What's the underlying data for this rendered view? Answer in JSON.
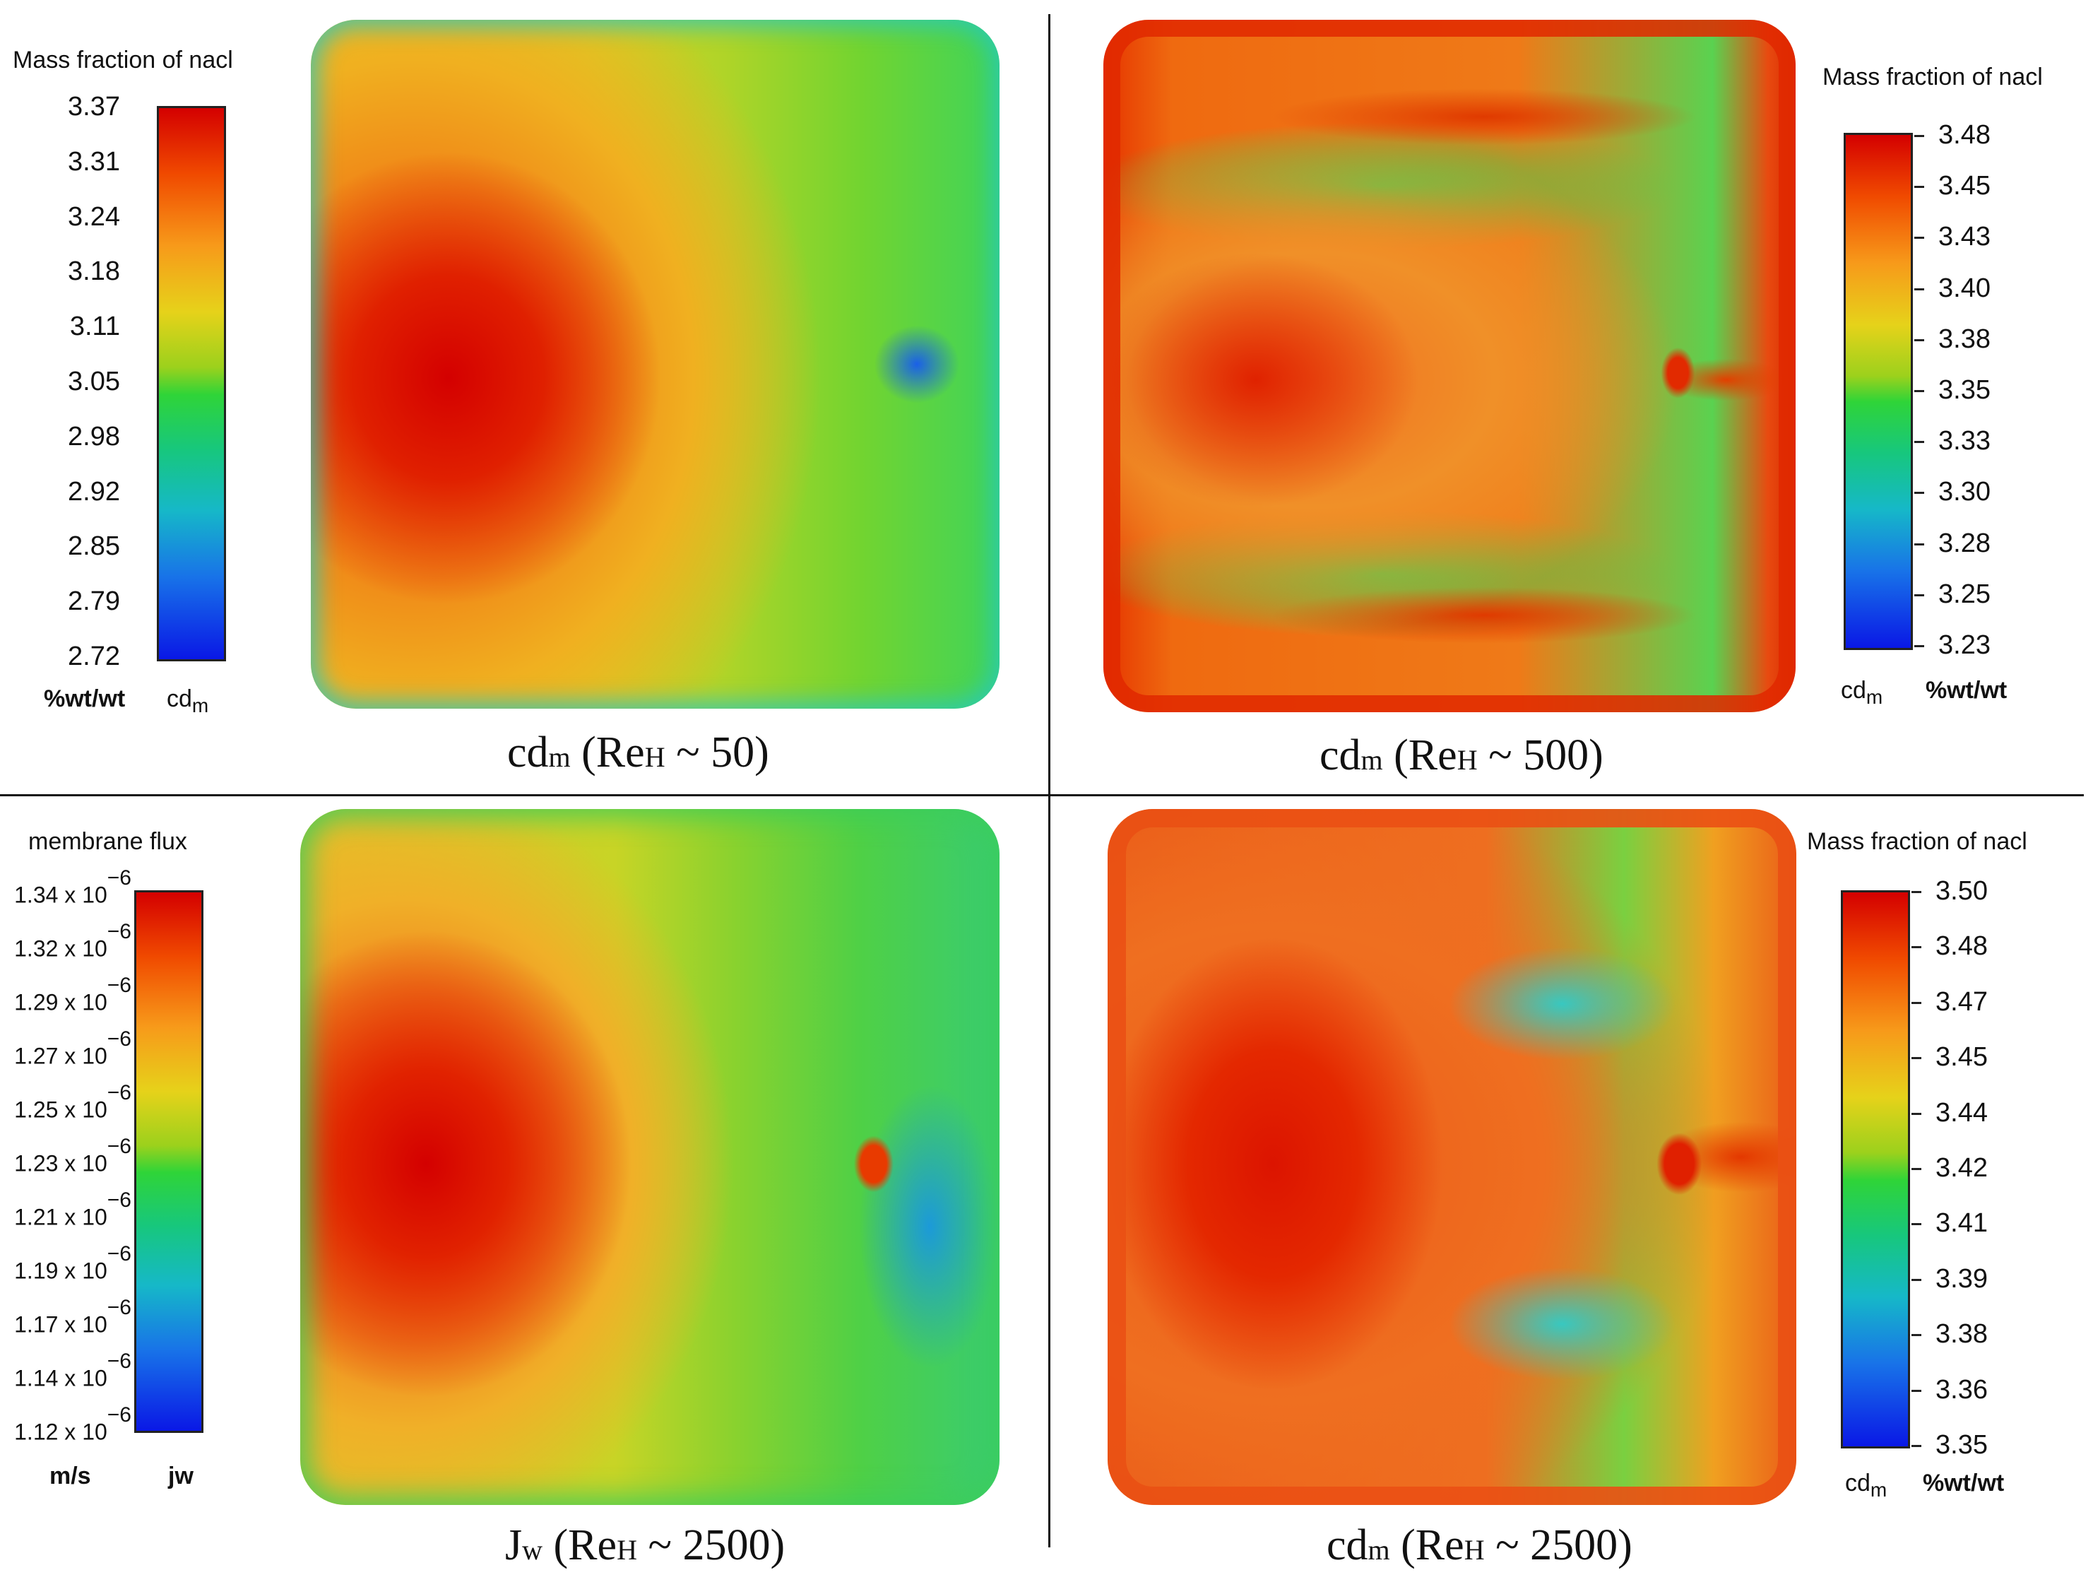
{
  "panels": {
    "tl": {
      "legend_title": "Mass fraction of nacl",
      "ticks": [
        "3.37",
        "3.31",
        "3.24",
        "3.18",
        "3.11",
        "3.05",
        "2.98",
        "2.92",
        "2.85",
        "2.79",
        "2.72"
      ],
      "unit_left": "%wt/wt",
      "unit_right": "cdm",
      "caption_main": "cd",
      "caption_sub": "m",
      "caption_mid": " (Re",
      "caption_sub2": "H",
      "caption_end": " ~ 50)"
    },
    "tr": {
      "legend_title": "Mass fraction of nacl",
      "ticks": [
        "3.48",
        "3.45",
        "3.43",
        "3.40",
        "3.38",
        "3.35",
        "3.33",
        "3.30",
        "3.28",
        "3.25",
        "3.23"
      ],
      "unit_left": "cdm",
      "unit_right": "%wt/wt",
      "caption_main": "cd",
      "caption_sub": "m",
      "caption_mid": " (Re",
      "caption_sub2": "H",
      "caption_end": " ~ 500)"
    },
    "bl": {
      "legend_title": "membrane  flux",
      "ticks": [
        "1.34 x 10",
        "1.32 x 10",
        "1.29 x 10",
        "1.27 x 10",
        "1.25 x 10",
        "1.23 x 10",
        "1.21 x 10",
        "1.19 x 10",
        "1.17 x 10",
        "1.14 x 10",
        "1.12 x 10"
      ],
      "exponent": "−6",
      "unit_left": "m/s",
      "unit_right": "jw",
      "caption_main": "J",
      "caption_sub": "w",
      "caption_mid": " (Re",
      "caption_sub2": "H",
      "caption_end": " ~ 2500)"
    },
    "br": {
      "legend_title": "Mass fraction of nacl",
      "ticks": [
        "3.50",
        "3.48",
        "3.47",
        "3.45",
        "3.44",
        "3.42",
        "3.41",
        "3.39",
        "3.38",
        "3.36",
        "3.35"
      ],
      "unit_left": "cdm",
      "unit_right": "%wt/wt",
      "caption_main": "cd",
      "caption_sub": "m",
      "caption_mid": " (Re",
      "caption_sub2": "H",
      "caption_end": " ~ 2500)"
    }
  },
  "colormap": [
    "#d40000",
    "#f04a00",
    "#f79a1a",
    "#e6d21a",
    "#9cd11c",
    "#2fd438",
    "#17c77d",
    "#16b8c8",
    "#1873e8",
    "#0a18e6"
  ]
}
